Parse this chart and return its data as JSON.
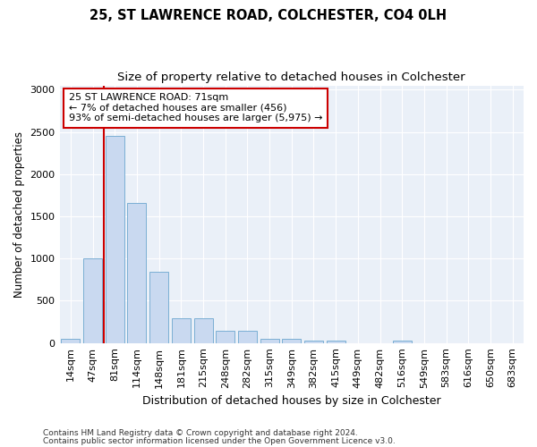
{
  "title1": "25, ST LAWRENCE ROAD, COLCHESTER, CO4 0LH",
  "title2": "Size of property relative to detached houses in Colchester",
  "xlabel": "Distribution of detached houses by size in Colchester",
  "ylabel": "Number of detached properties",
  "categories": [
    "14sqm",
    "47sqm",
    "81sqm",
    "114sqm",
    "148sqm",
    "181sqm",
    "215sqm",
    "248sqm",
    "282sqm",
    "315sqm",
    "349sqm",
    "382sqm",
    "415sqm",
    "449sqm",
    "482sqm",
    "516sqm",
    "549sqm",
    "583sqm",
    "616sqm",
    "650sqm",
    "683sqm"
  ],
  "values": [
    50,
    1000,
    2450,
    1660,
    840,
    295,
    295,
    150,
    150,
    50,
    50,
    30,
    30,
    0,
    0,
    30,
    0,
    0,
    0,
    0,
    0
  ],
  "bar_color": "#c9d9f0",
  "bar_edge_color": "#7bafd4",
  "annotation_line0": "25 ST LAWRENCE ROAD: 71sqm",
  "annotation_line1": "← 7% of detached houses are smaller (456)",
  "annotation_line2": "93% of semi-detached houses are larger (5,975) →",
  "annotation_box_color": "#ffffff",
  "annotation_box_edge_color": "#cc0000",
  "vline_color": "#cc0000",
  "ylim": [
    0,
    3050
  ],
  "yticks": [
    0,
    500,
    1000,
    1500,
    2000,
    2500,
    3000
  ],
  "footer1": "Contains HM Land Registry data © Crown copyright and database right 2024.",
  "footer2": "Contains public sector information licensed under the Open Government Licence v3.0.",
  "bg_color": "#eaf0f8",
  "title1_fontsize": 10.5,
  "title2_fontsize": 9.5,
  "ylabel_fontsize": 8.5,
  "xlabel_fontsize": 9,
  "tick_fontsize": 8,
  "annot_fontsize": 8,
  "footer_fontsize": 6.5,
  "vline_x": 1.5
}
